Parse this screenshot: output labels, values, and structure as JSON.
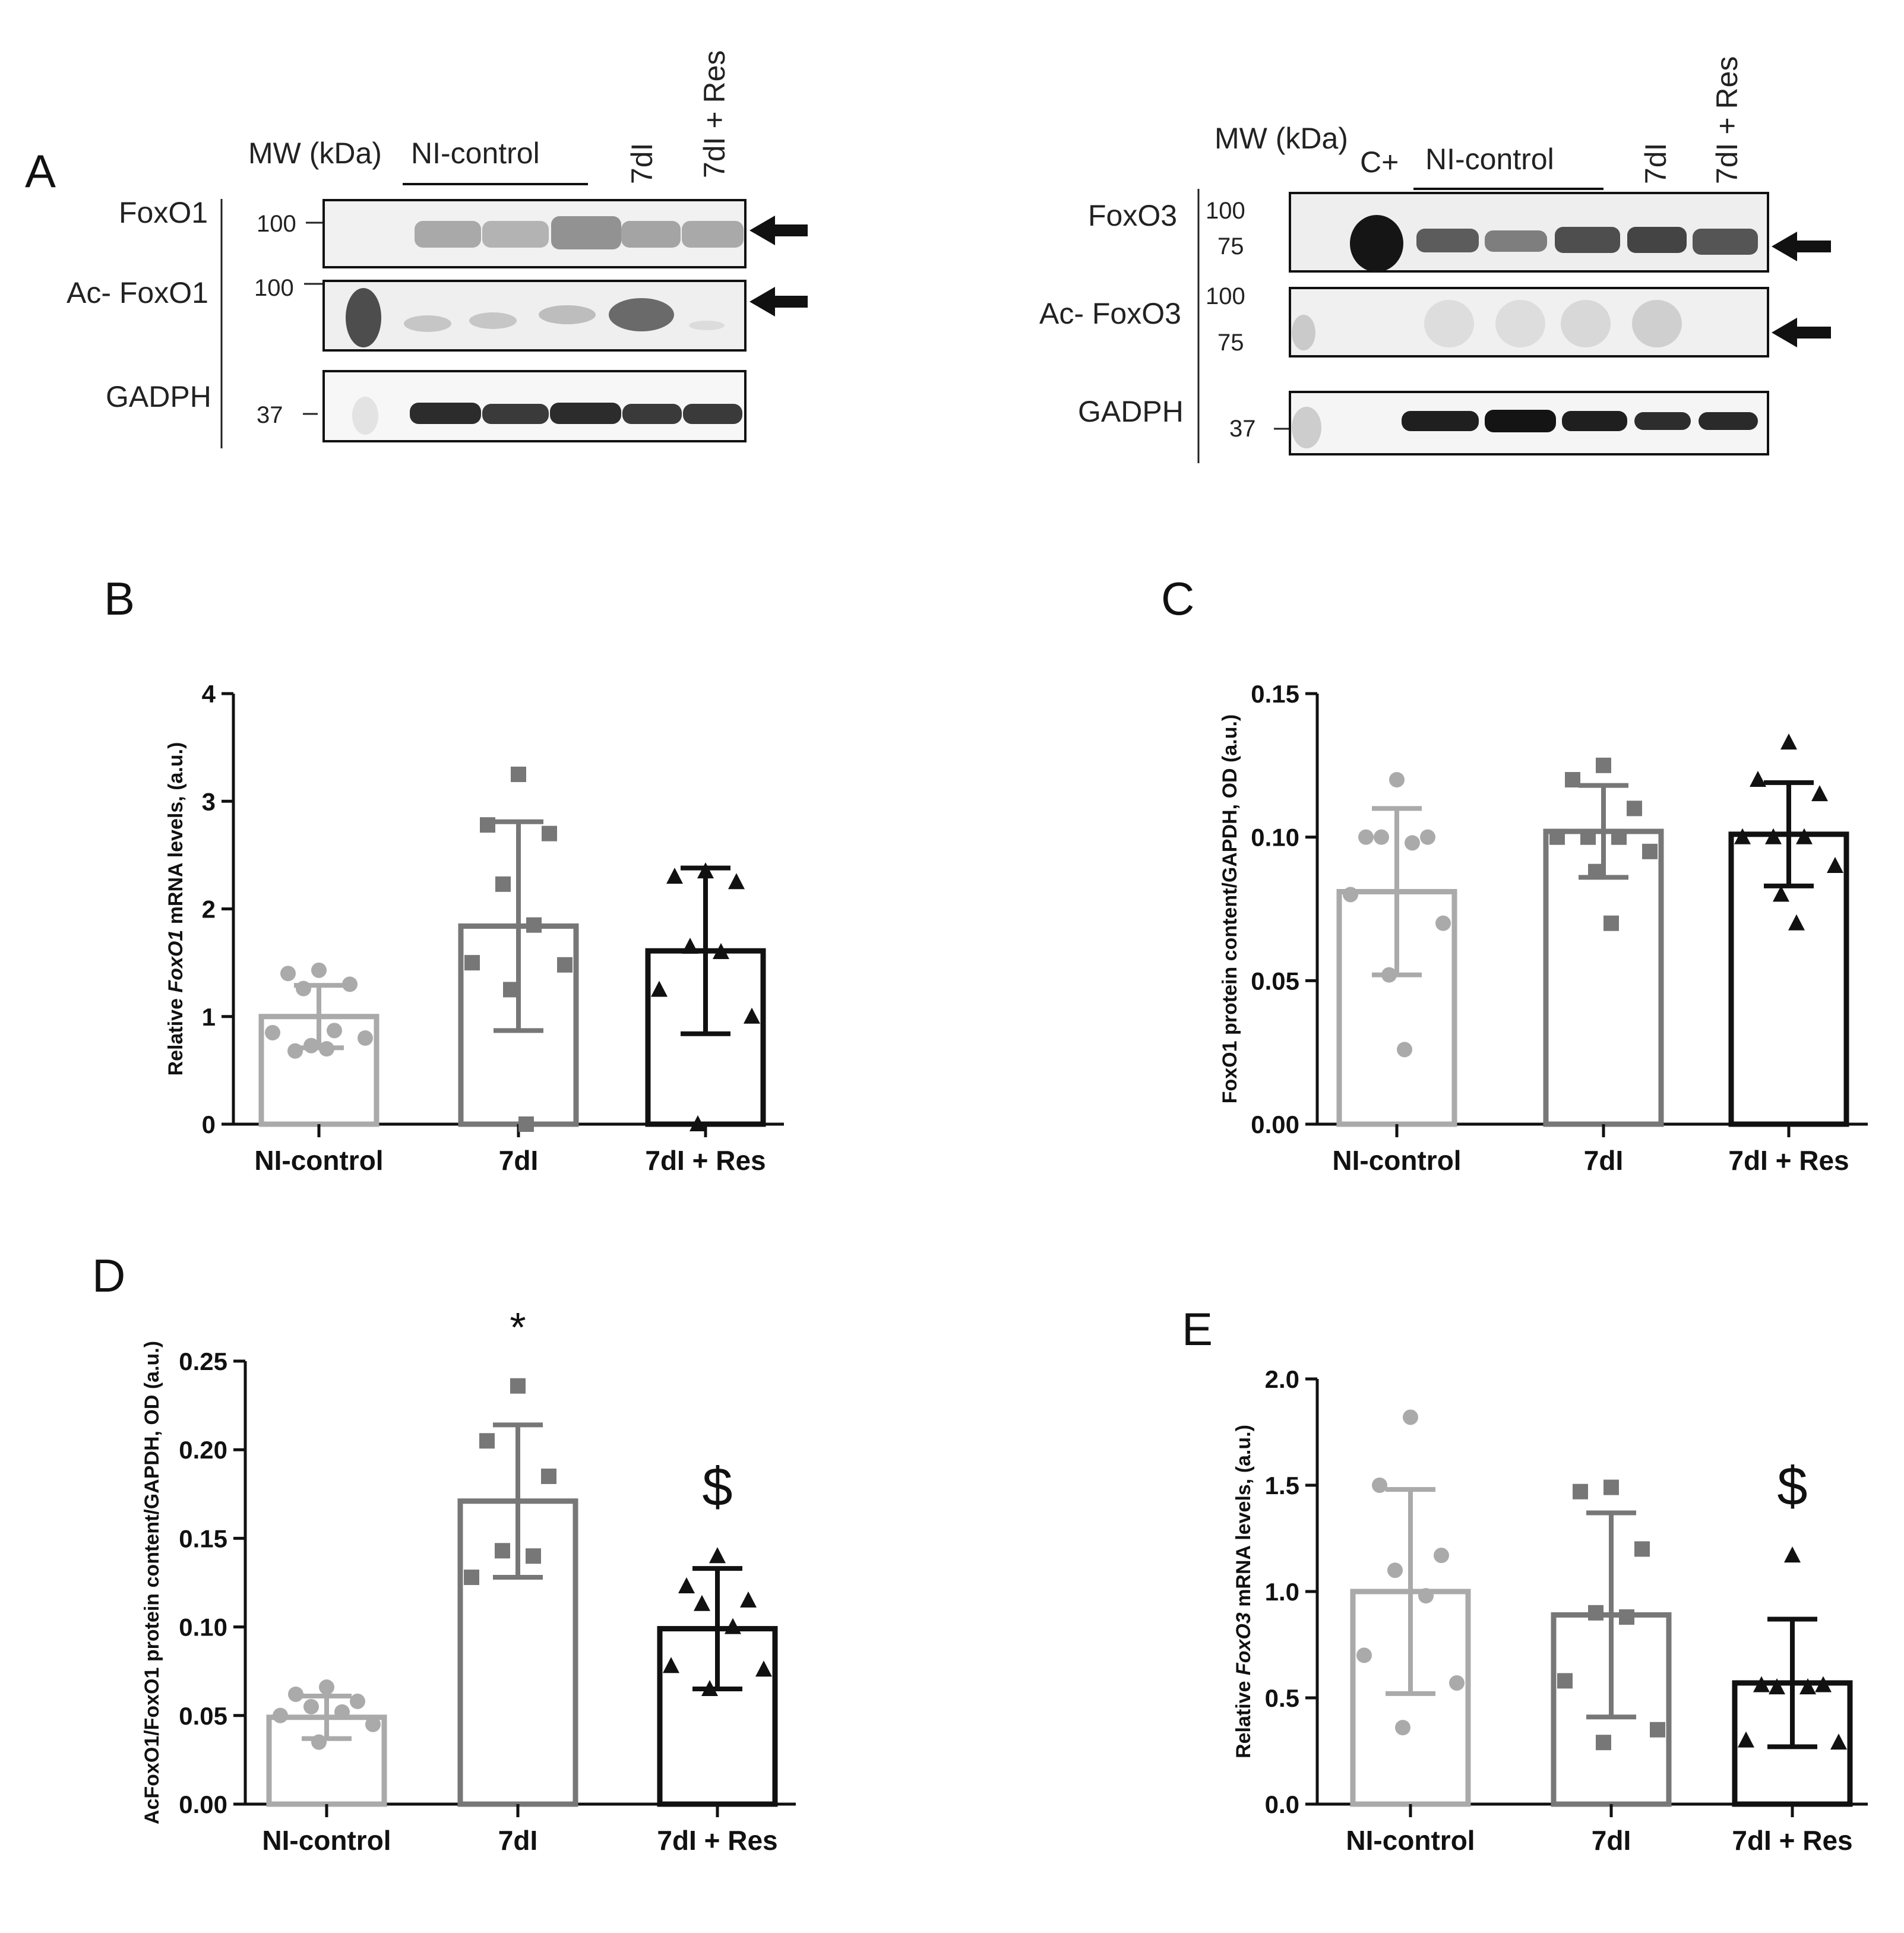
{
  "blots": {
    "left": {
      "mw_header": "MW (kDa)",
      "group_label": "NI-control",
      "lane_7dI": "7dI",
      "lane_7dI_res": "7dI + Res",
      "rows": [
        "FoxO1",
        "Ac- FoxO1",
        "GADPH"
      ],
      "mw_marks": [
        "100",
        "100",
        "37"
      ]
    },
    "right": {
      "mw_header": "MW (kDa)",
      "lane_cplus": "C+",
      "group_label": "NI-control",
      "lane_7dI": "7dI",
      "lane_7dI_res": "7dI + Res",
      "rows": [
        "FoxO3",
        "Ac- FoxO3",
        "GADPH"
      ],
      "mw_marks": [
        "100",
        "75",
        "100",
        "75",
        "37"
      ]
    }
  },
  "chart_data": [
    {
      "panel": "A",
      "type": "other"
    },
    {
      "panel": "B",
      "type": "bar",
      "ylabel_pre": "Relative ",
      "ylabel_italic": "FoxO1",
      "ylabel_post": " mRNA levels, (a.u.)",
      "ylim": [
        0,
        4
      ],
      "yticks": [
        "0",
        "1",
        "2",
        "3",
        "4"
      ],
      "categories": [
        "NI-control",
        "7dI",
        "7dI + Res"
      ],
      "colors": [
        "#aaaaaa",
        "#777777",
        "#111111"
      ],
      "markers": [
        "circle",
        "square",
        "triangle"
      ],
      "means": [
        1.0,
        1.84,
        1.61
      ],
      "sd": [
        0.29,
        0.97,
        0.77
      ],
      "points": [
        [
          1.43,
          1.4,
          1.3,
          1.26,
          0.87,
          0.85,
          0.8,
          0.73,
          0.7,
          0.68
        ],
        [
          3.25,
          2.78,
          2.7,
          2.23,
          1.85,
          1.5,
          1.48,
          1.25,
          0.0
        ],
        [
          2.35,
          2.3,
          2.25,
          1.65,
          1.6,
          1.25,
          1.0,
          0.0
        ]
      ],
      "annotations": [
        "",
        "",
        ""
      ]
    },
    {
      "panel": "C",
      "type": "bar",
      "ylabel": "FoxO1 protein content/GAPDH, OD (a.u.)",
      "ylim": [
        0,
        0.15
      ],
      "yticks": [
        "0.00",
        "0.05",
        "0.10",
        "0.15"
      ],
      "categories": [
        "NI-control",
        "7dI",
        "7dI + Res"
      ],
      "colors": [
        "#aaaaaa",
        "#777777",
        "#111111"
      ],
      "markers": [
        "circle",
        "square",
        "triangle"
      ],
      "means": [
        0.081,
        0.102,
        0.101
      ],
      "sd": [
        0.029,
        0.016,
        0.018
      ],
      "points": [
        [
          0.12,
          0.1,
          0.1,
          0.1,
          0.098,
          0.08,
          0.07,
          0.052,
          0.026
        ],
        [
          0.125,
          0.12,
          0.11,
          0.1,
          0.1,
          0.1,
          0.095,
          0.088,
          0.07
        ],
        [
          0.133,
          0.12,
          0.115,
          0.1,
          0.1,
          0.1,
          0.09,
          0.08,
          0.07
        ]
      ],
      "annotations": [
        "",
        "",
        ""
      ]
    },
    {
      "panel": "D",
      "type": "bar",
      "ylabel": "AcFoxO1/FoxO1 protein content/GAPDH, OD (a.u.)",
      "ylim": [
        0,
        0.25
      ],
      "yticks": [
        "0.00",
        "0.05",
        "0.10",
        "0.15",
        "0.20",
        "0.25"
      ],
      "categories": [
        "NI-control",
        "7dI",
        "7dI + Res"
      ],
      "colors": [
        "#aaaaaa",
        "#777777",
        "#111111"
      ],
      "markers": [
        "circle",
        "square",
        "triangle"
      ],
      "means": [
        0.049,
        0.171,
        0.099
      ],
      "sd": [
        0.012,
        0.043,
        0.034
      ],
      "points": [
        [
          0.066,
          0.062,
          0.058,
          0.055,
          0.052,
          0.05,
          0.045,
          0.035
        ],
        [
          0.236,
          0.205,
          0.185,
          0.143,
          0.14,
          0.128
        ],
        [
          0.14,
          0.123,
          0.115,
          0.113,
          0.1,
          0.078,
          0.076,
          0.065
        ]
      ],
      "annotations": [
        "",
        "*",
        "$"
      ]
    },
    {
      "panel": "E",
      "type": "bar",
      "ylabel_pre": "Relative ",
      "ylabel_italic": "FoxO3",
      "ylabel_post": " mRNA levels, (a.u.)",
      "ylim": [
        0,
        2.0
      ],
      "yticks": [
        "0.0",
        "0.5",
        "1.0",
        "1.5",
        "2.0"
      ],
      "categories": [
        "NI-control",
        "7dI",
        "7dI + Res"
      ],
      "colors": [
        "#aaaaaa",
        "#777777",
        "#111111"
      ],
      "markers": [
        "circle",
        "square",
        "triangle"
      ],
      "means": [
        1.0,
        0.89,
        0.57
      ],
      "sd": [
        0.48,
        0.48,
        0.3
      ],
      "points": [
        [
          1.82,
          1.5,
          1.17,
          1.1,
          0.98,
          0.7,
          0.57,
          0.36
        ],
        [
          1.49,
          1.47,
          1.2,
          0.9,
          0.88,
          0.58,
          0.35,
          0.29
        ],
        [
          1.17,
          0.56,
          0.56,
          0.55,
          0.55,
          0.3,
          0.29
        ]
      ],
      "annotations": [
        "",
        "",
        "$"
      ]
    }
  ]
}
